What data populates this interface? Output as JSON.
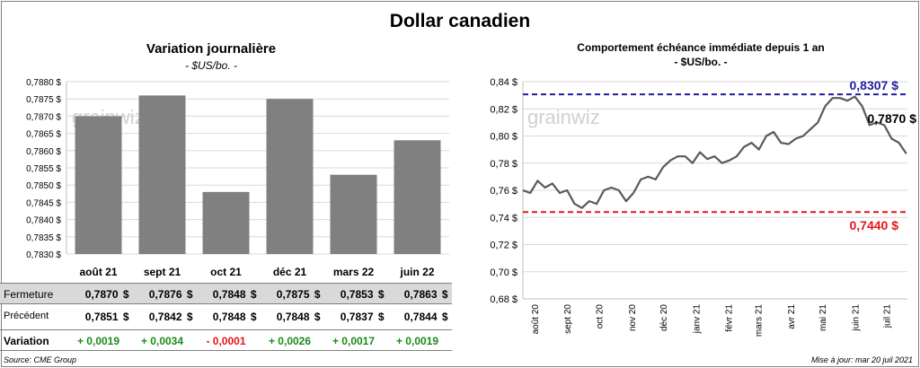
{
  "title": "Dollar canadien",
  "left": {
    "title": "Variation  journalière",
    "subtitle": "- $US/bo. -",
    "watermark": "grainwiz"
  },
  "right": {
    "title": "Comportement échéance immédiate depuis 1 an",
    "subtitle": "- $US/bo. -",
    "watermark": "grainwiz",
    "high_label": "0,8307 $",
    "low_label": "0,7440 $",
    "last_label": "0,7870 $"
  },
  "table": {
    "row_labels": [
      "Fermeture",
      "Précédent",
      "Variation"
    ],
    "fermeture": [
      "0,7870",
      "0,7876",
      "0,7848",
      "0,7875",
      "0,7853",
      "0,7863"
    ],
    "precedent": [
      "0,7851",
      "0,7842",
      "0,7848",
      "0,7848",
      "0,7837",
      "0,7844"
    ],
    "variation": [
      "+ 0,0019",
      "+ 0,0034",
      "- 0,0001",
      "+ 0,0026",
      "+ 0,0017",
      "+ 0,0019"
    ],
    "dollar": "$"
  },
  "footer": {
    "source": "Source: CME Group",
    "update": "Mise à jour: mar 20 juil 2021"
  },
  "colors": {
    "bar": "#808080",
    "line": "#595959",
    "high": "#1f1f9f",
    "low": "#e8141b",
    "positive": "#1a8a1a",
    "negative": "#e8141b"
  },
  "chart_data": [
    {
      "type": "bar",
      "title": "Variation  journalière",
      "subtitle": "- $US/bo. -",
      "categories": [
        "août 21",
        "sept 21",
        "oct 21",
        "déc 21",
        "mars 22",
        "juin 22"
      ],
      "values": [
        0.787,
        0.7876,
        0.7848,
        0.7875,
        0.7853,
        0.7863
      ],
      "ylim": [
        0.783,
        0.788
      ],
      "yticks": [
        "0,7830 $",
        "0,7835 $",
        "0,7840 $",
        "0,7845 $",
        "0,7850 $",
        "0,7855 $",
        "0,7860 $",
        "0,7865 $",
        "0,7870 $",
        "0,7875 $",
        "0,7880 $"
      ],
      "grid": true
    },
    {
      "type": "line",
      "title": "Comportement échéance immédiate depuis 1 an",
      "subtitle": "- $US/bo. -",
      "ylim": [
        0.68,
        0.84
      ],
      "yticks": [
        "0,68 $",
        "0,70 $",
        "0,72 $",
        "0,74 $",
        "0,76 $",
        "0,78 $",
        "0,80 $",
        "0,82 $",
        "0,84 $"
      ],
      "xticks": [
        "août 20",
        "sept 20",
        "oct 20",
        "nov 20",
        "déc 20",
        "janv 21",
        "févr 21",
        "mars 21",
        "avr 21",
        "mai 21",
        "juin 21",
        "juil 21"
      ],
      "high": 0.8307,
      "low": 0.744,
      "last": 0.787,
      "x": [
        "2020-07-21",
        "2020-07-28",
        "2020-08-04",
        "2020-08-11",
        "2020-08-18",
        "2020-08-25",
        "2020-09-01",
        "2020-09-08",
        "2020-09-15",
        "2020-09-22",
        "2020-09-29",
        "2020-10-06",
        "2020-10-13",
        "2020-10-20",
        "2020-10-27",
        "2020-11-03",
        "2020-11-10",
        "2020-11-17",
        "2020-11-24",
        "2020-12-01",
        "2020-12-08",
        "2020-12-15",
        "2020-12-22",
        "2020-12-29",
        "2021-01-05",
        "2021-01-12",
        "2021-01-19",
        "2021-01-26",
        "2021-02-02",
        "2021-02-09",
        "2021-02-16",
        "2021-02-23",
        "2021-03-02",
        "2021-03-09",
        "2021-03-16",
        "2021-03-23",
        "2021-03-30",
        "2021-04-06",
        "2021-04-13",
        "2021-04-20",
        "2021-04-27",
        "2021-05-04",
        "2021-05-11",
        "2021-05-18",
        "2021-05-25",
        "2021-06-01",
        "2021-06-08",
        "2021-06-15",
        "2021-06-22",
        "2021-06-29",
        "2021-07-06",
        "2021-07-13",
        "2021-07-20"
      ],
      "y": [
        0.76,
        0.758,
        0.767,
        0.762,
        0.765,
        0.758,
        0.76,
        0.75,
        0.747,
        0.752,
        0.75,
        0.76,
        0.762,
        0.76,
        0.752,
        0.758,
        0.768,
        0.77,
        0.768,
        0.777,
        0.782,
        0.785,
        0.785,
        0.78,
        0.788,
        0.783,
        0.785,
        0.78,
        0.782,
        0.785,
        0.792,
        0.795,
        0.79,
        0.8,
        0.803,
        0.795,
        0.794,
        0.798,
        0.8,
        0.805,
        0.81,
        0.822,
        0.828,
        0.828,
        0.826,
        0.829,
        0.822,
        0.808,
        0.81,
        0.808,
        0.798,
        0.795,
        0.787
      ]
    }
  ]
}
